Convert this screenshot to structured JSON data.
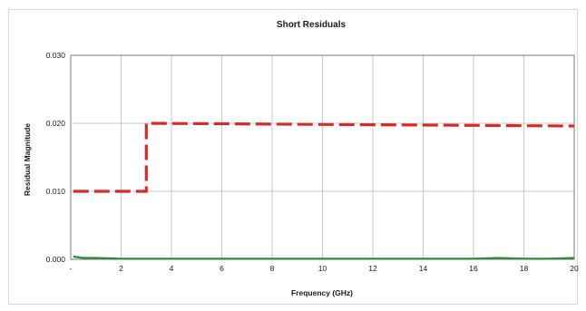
{
  "chart_data": {
    "type": "line",
    "title": "Short Residuals",
    "xlabel": "Frequency (GHz)",
    "ylabel": "Residual Magnitude",
    "xlim": [
      0,
      20
    ],
    "ylim": [
      0,
      0.03
    ],
    "x_ticks": [
      0,
      2,
      4,
      6,
      8,
      10,
      12,
      14,
      16,
      18,
      20
    ],
    "x_tick_labels": [
      "-",
      "2",
      "4",
      "6",
      "8",
      "10",
      "12",
      "14",
      "16",
      "18",
      "20"
    ],
    "y_ticks": [
      0,
      0.01,
      0.02,
      0.03
    ],
    "y_tick_labels": [
      "0.000",
      "0.010",
      "0.020",
      "0.030"
    ],
    "grid": true,
    "legend": "none",
    "series": [
      {
        "style": "dashed",
        "color": "#d42a2a",
        "x": [
          0.1,
          3,
          3,
          20
        ],
        "y": [
          0.01,
          0.01,
          0.02,
          0.0196
        ]
      },
      {
        "style": "solid",
        "color": "#2e8b3a",
        "x": [
          0.1,
          0.5,
          1,
          2,
          3,
          4,
          5,
          6,
          7,
          8,
          9,
          10,
          11,
          12,
          13,
          14,
          15,
          16,
          17,
          18,
          19,
          20
        ],
        "y": [
          0.0004,
          0.0002,
          0.0002,
          0.0001,
          0.0001,
          0.0001,
          0.0001,
          0.0001,
          0.0001,
          0.0001,
          0.0001,
          0.0001,
          0.0001,
          0.0001,
          0.0001,
          0.0001,
          0.0001,
          0.0001,
          0.0002,
          0.0001,
          0.0001,
          0.0002
        ]
      }
    ]
  }
}
